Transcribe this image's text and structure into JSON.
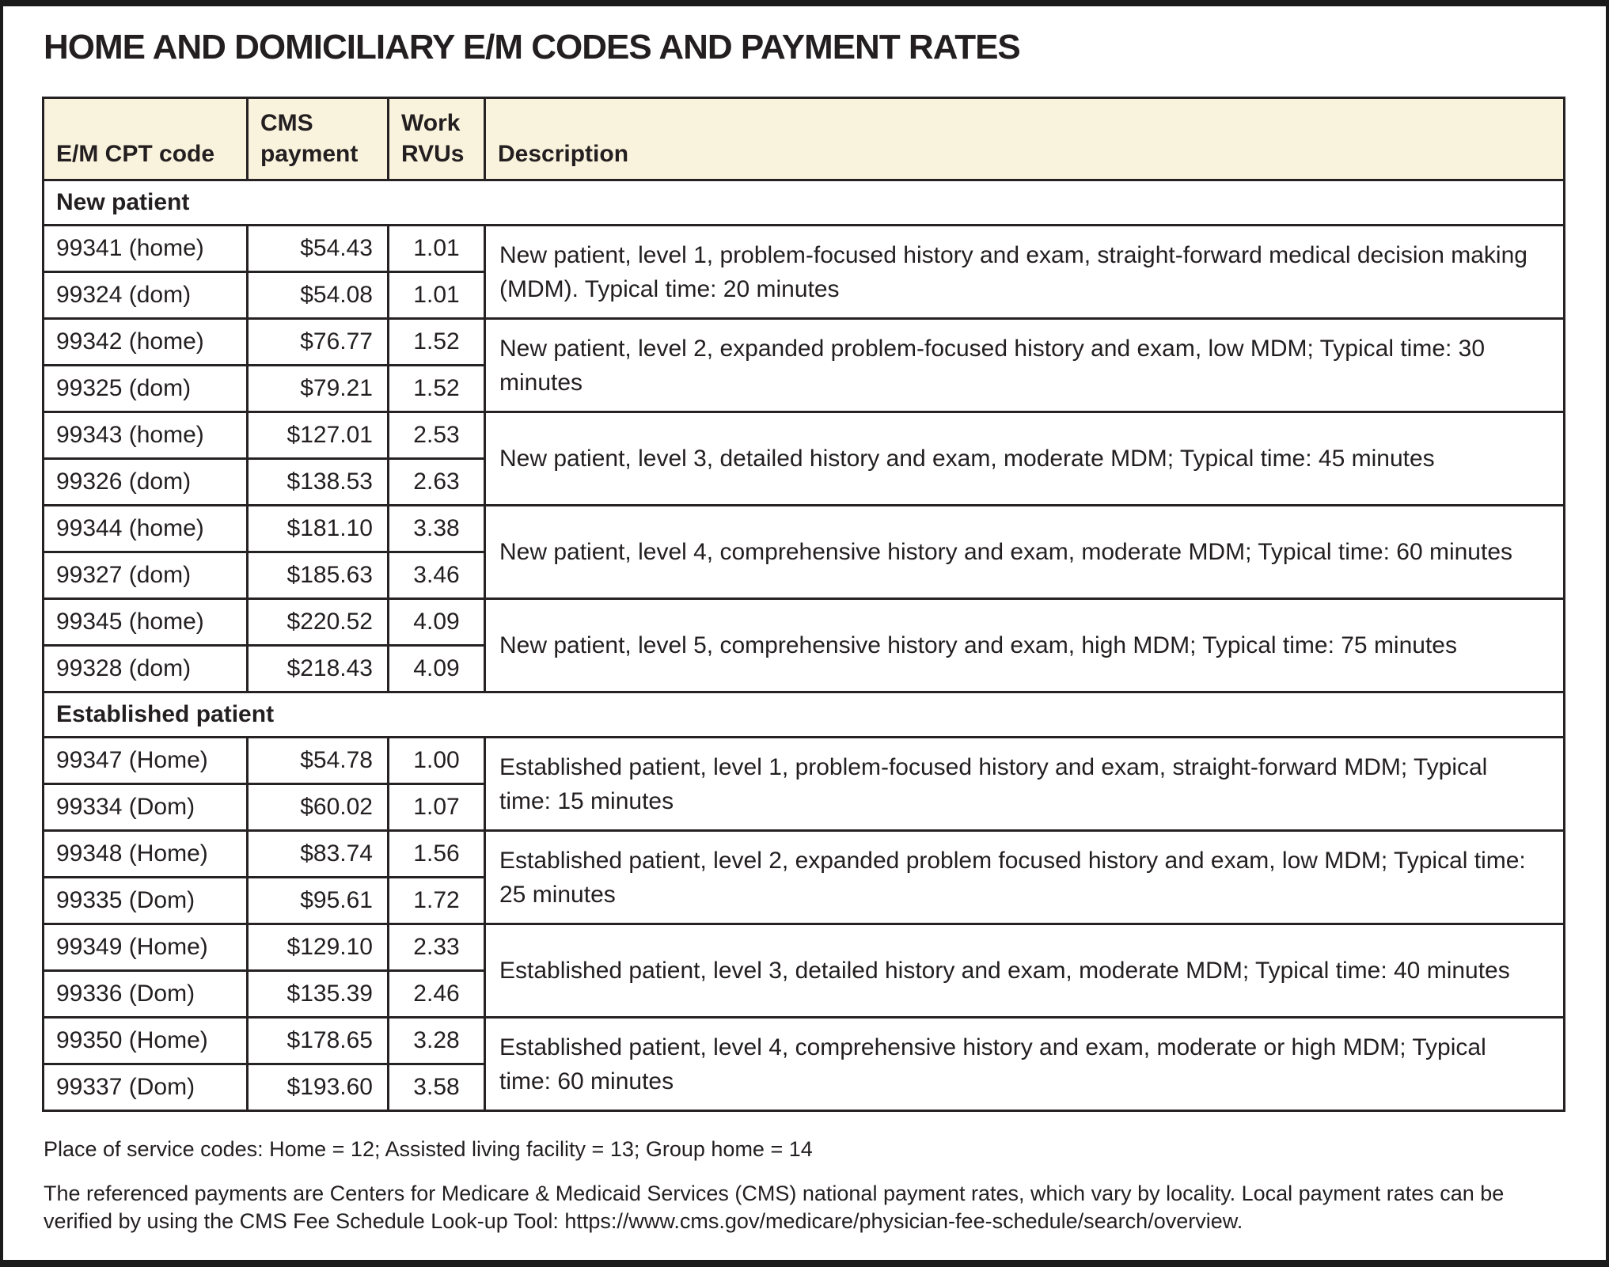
{
  "title": "HOME AND DOMICILIARY E/M CODES AND PAYMENT RATES",
  "colors": {
    "header_bg": "#f9f2dc",
    "border": "#262223",
    "text": "#231f20",
    "frame": "#1b1b1b"
  },
  "table": {
    "columns": [
      "E/M CPT code",
      "CMS payment",
      "Work RVUs",
      "Description"
    ],
    "sections": [
      {
        "label": "New patient",
        "groups": [
          {
            "rows": [
              [
                "99341 (home)",
                "$54.43",
                "1.01"
              ],
              [
                "99324 (dom)",
                "$54.08",
                "1.01"
              ]
            ],
            "description": "New patient, level 1, problem-focused history and exam, straight-forward medical decision making (MDM). Typical time: 20 minutes"
          },
          {
            "rows": [
              [
                "99342 (home)",
                "$76.77",
                "1.52"
              ],
              [
                "99325 (dom)",
                "$79.21",
                "1.52"
              ]
            ],
            "description": "New patient, level 2, expanded problem-focused history and exam, low MDM; Typical time: 30 minutes"
          },
          {
            "rows": [
              [
                "99343 (home)",
                "$127.01",
                "2.53"
              ],
              [
                "99326 (dom)",
                "$138.53",
                "2.63"
              ]
            ],
            "description": "New patient, level 3, detailed history and exam, moderate MDM; Typical time: 45 minutes"
          },
          {
            "rows": [
              [
                "99344 (home)",
                "$181.10",
                "3.38"
              ],
              [
                "99327 (dom)",
                "$185.63",
                "3.46"
              ]
            ],
            "description": "New patient, level 4, comprehensive history and exam, moderate MDM; Typical time: 60 minutes"
          },
          {
            "rows": [
              [
                "99345 (home)",
                "$220.52",
                "4.09"
              ],
              [
                "99328 (dom)",
                "$218.43",
                "4.09"
              ]
            ],
            "description": "New patient, level 5, comprehensive history and exam, high MDM; Typical time: 75 minutes"
          }
        ]
      },
      {
        "label": "Established patient",
        "groups": [
          {
            "rows": [
              [
                "99347 (Home)",
                "$54.78",
                "1.00"
              ],
              [
                "99334 (Dom)",
                "$60.02",
                "1.07"
              ]
            ],
            "description": "Established patient, level 1, problem-focused history and exam, straight-forward MDM; Typical time: 15 minutes"
          },
          {
            "rows": [
              [
                "99348 (Home)",
                "$83.74",
                "1.56"
              ],
              [
                "99335 (Dom)",
                "$95.61",
                "1.72"
              ]
            ],
            "description": "Established patient, level 2, expanded problem focused history and exam, low MDM; Typical time: 25 minutes"
          },
          {
            "rows": [
              [
                "99349 (Home)",
                "$129.10",
                "2.33"
              ],
              [
                "99336 (Dom)",
                "$135.39",
                "2.46"
              ]
            ],
            "description": "Established patient, level 3, detailed history and exam, moderate MDM; Typical time: 40 minutes"
          },
          {
            "rows": [
              [
                "99350 (Home)",
                "$178.65",
                "3.28"
              ],
              [
                "99337 (Dom)",
                "$193.60",
                "3.58"
              ]
            ],
            "description": "Established patient, level 4, comprehensive history and exam, moderate or high MDM; Typical time: 60 minutes"
          }
        ]
      }
    ]
  },
  "footnotes": [
    "Place of service codes: Home = 12; Assisted living facility = 13; Group home = 14",
    "The referenced payments are Centers for Medicare & Medicaid Services (CMS) national payment rates, which vary by locality. Local payment rates can be verified by using the CMS Fee Schedule Look-up Tool: https://www.cms.gov/medicare/physician-fee-schedule/search/overview."
  ]
}
